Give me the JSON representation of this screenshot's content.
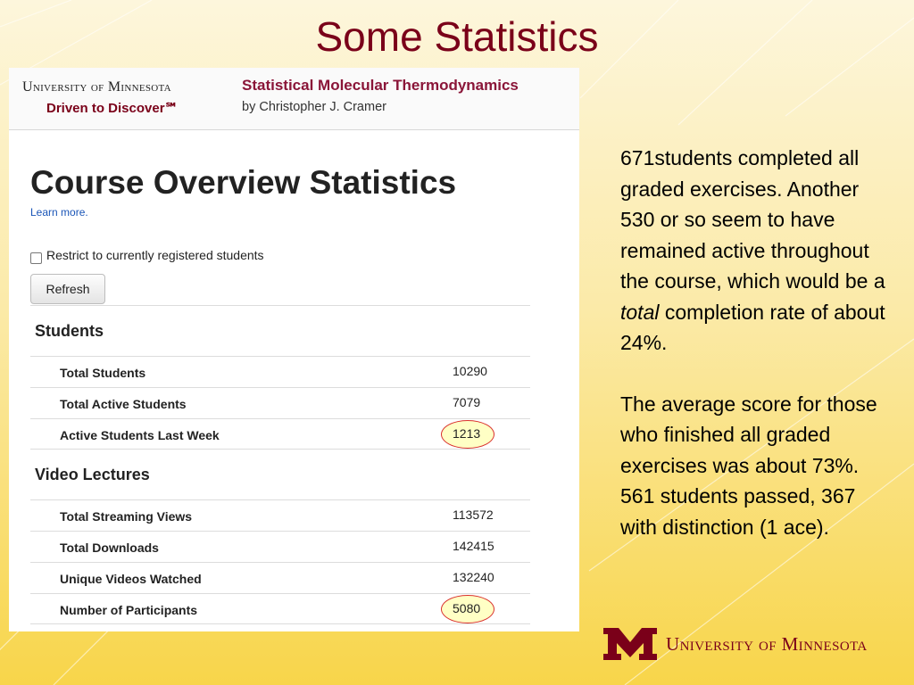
{
  "slide": {
    "title": "Some Statistics"
  },
  "header": {
    "university": "University of Minnesota",
    "tagline": "Driven to Discover℠",
    "course_title": "Statistical Molecular Thermodynamics",
    "course_author": "by Christopher J. Cramer"
  },
  "overview": {
    "title": "Course Overview Statistics",
    "learn_more": "Learn more.",
    "restrict_label": "Restrict to currently registered students",
    "restrict_checked": false,
    "refresh_label": "Refresh"
  },
  "sections": {
    "students": {
      "heading": "Students",
      "rows": [
        {
          "label": "Total Students",
          "value": "10290"
        },
        {
          "label": "Total Active Students",
          "value": "7079"
        },
        {
          "label": "Active Students Last Week",
          "value": "1213"
        }
      ]
    },
    "video": {
      "heading": "Video Lectures",
      "rows": [
        {
          "label": "Total Streaming Views",
          "value": "113572"
        },
        {
          "label": "Total Downloads",
          "value": "142415"
        },
        {
          "label": "Unique Videos Watched",
          "value": "132240"
        },
        {
          "label": "Number of Participants",
          "value": "5080"
        }
      ]
    }
  },
  "notes": {
    "p1_before": "671students completed all graded exercises. Another 530 or so seem to have remained active throughout the course, which would be a ",
    "p1_em": "total",
    "p1_after": " completion rate of about 24%.",
    "p2": "The average score for those who finished all graded exercises was about 73%. 561 students passed, 367 with distinction (1 ace)."
  },
  "footer": {
    "university": "University of Minnesota"
  },
  "colors": {
    "maroon": "#7a0019",
    "gold": "#f8d54a",
    "highlight_ring": "#d9302c"
  }
}
